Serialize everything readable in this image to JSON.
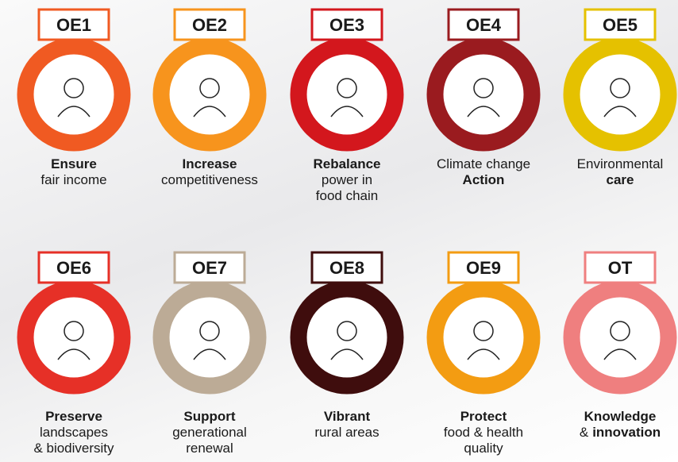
{
  "items": [
    {
      "code": "OE1",
      "color": "#f05a22",
      "lines": [
        [
          {
            "text": "Ensure",
            "bold": true
          }
        ],
        [
          {
            "text": "fair income",
            "bold": false
          }
        ]
      ]
    },
    {
      "code": "OE2",
      "color": "#f7941d",
      "lines": [
        [
          {
            "text": "Increase",
            "bold": true
          }
        ],
        [
          {
            "text": "competitiveness",
            "bold": false
          }
        ]
      ]
    },
    {
      "code": "OE3",
      "color": "#d3171d",
      "lines": [
        [
          {
            "text": "Rebalance",
            "bold": true
          }
        ],
        [
          {
            "text": "power in",
            "bold": false
          }
        ],
        [
          {
            "text": "food chain",
            "bold": false
          }
        ]
      ]
    },
    {
      "code": "OE4",
      "color": "#9a1b1f",
      "lines": [
        [
          {
            "text": "Climate change",
            "bold": false
          }
        ],
        [
          {
            "text": "Action",
            "bold": true
          }
        ]
      ]
    },
    {
      "code": "OE5",
      "color": "#e5c100",
      "lines": [
        [
          {
            "text": "Environmental",
            "bold": false
          }
        ],
        [
          {
            "text": "care",
            "bold": true
          }
        ]
      ]
    },
    {
      "code": "OE6",
      "color": "#e63027",
      "lines": [
        [
          {
            "text": "Preserve",
            "bold": true
          }
        ],
        [
          {
            "text": "landscapes",
            "bold": false
          }
        ],
        [
          {
            "text": "& biodiversity",
            "bold": false
          }
        ]
      ]
    },
    {
      "code": "OE7",
      "color": "#bcab96",
      "lines": [
        [
          {
            "text": "Support",
            "bold": true
          }
        ],
        [
          {
            "text": "generational",
            "bold": false
          }
        ],
        [
          {
            "text": "renewal",
            "bold": false
          }
        ]
      ]
    },
    {
      "code": "OE8",
      "color": "#3f0d0d",
      "lines": [
        [
          {
            "text": "Vibrant",
            "bold": true
          }
        ],
        [
          {
            "text": "rural areas",
            "bold": false
          }
        ]
      ]
    },
    {
      "code": "OE9",
      "color": "#f39c12",
      "lines": [
        [
          {
            "text": "Protect",
            "bold": true
          }
        ],
        [
          {
            "text": "food & health",
            "bold": false
          }
        ],
        [
          {
            "text": "quality",
            "bold": false
          }
        ]
      ]
    },
    {
      "code": "OT",
      "color": "#ef7f7f",
      "lines": [
        [
          {
            "text": "Knowledge",
            "bold": true
          }
        ],
        [
          {
            "text": "&",
            "bold": false
          },
          {
            "text": "innovation",
            "bold": true
          }
        ]
      ]
    }
  ]
}
